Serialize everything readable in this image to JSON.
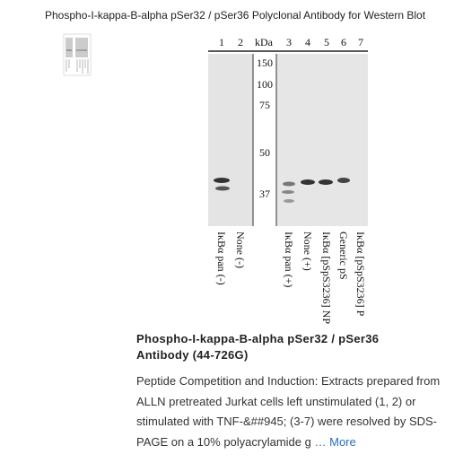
{
  "header": {
    "title": "Phospho-I-kappa-B-alpha pSer32 / pSer36 Polyclonal Antibody for Western Blot"
  },
  "blot": {
    "lane_numbers": [
      "1",
      "2",
      "kDa",
      "3",
      "4",
      "5",
      "6",
      "7"
    ],
    "markers": [
      "150",
      "100",
      "75",
      "50",
      "37"
    ],
    "lane_labels": [
      "IκBα pan (-)",
      "None (-)",
      "IκBα pan (+)",
      "None (+)",
      "IκBα [pSpS3236] NP",
      "Generic pS",
      "IκBα [pSpS3236] P"
    ]
  },
  "product": {
    "name": "Phospho-I-kappa-B-alpha pSer32 / pSer36 Antibody (44-726G)",
    "description": "Peptide Competition and Induction: Extracts prepared from ALLN pretreated Jurkat cells left unstimulated (1, 2) or stimulated with TNF-&##945; (3-7) were resolved by SDS-PAGE on a 10% polyacrylamide g",
    "more": "… More"
  }
}
